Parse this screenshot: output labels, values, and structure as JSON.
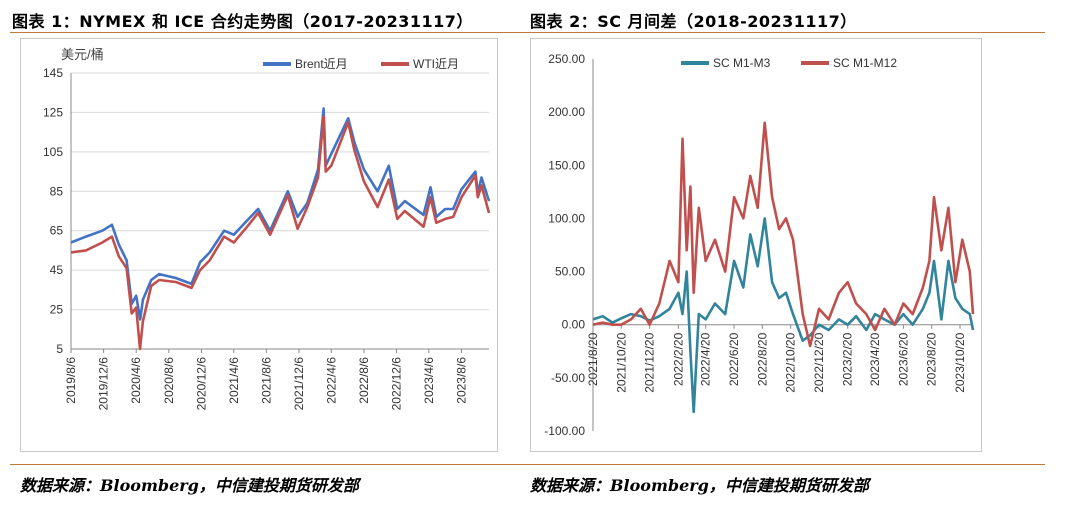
{
  "left": {
    "caption": "图表 1：NYMEX 和 ICE 合约走势图（2017-20231117）",
    "source": "数据来源：Bloomberg，中信建投期货研发部",
    "chart_data": {
      "type": "line",
      "ylabel": "美元/桶",
      "ylim": [
        5,
        145
      ],
      "yticks": [
        5,
        25,
        45,
        65,
        85,
        105,
        125,
        145
      ],
      "xlim": [
        "2019-08-06",
        "2023-11-17"
      ],
      "xticks": [
        "2019/8/6",
        "2019/12/6",
        "2020/4/6",
        "2020/8/6",
        "2020/12/6",
        "2021/4/6",
        "2021/8/6",
        "2021/12/6",
        "2022/4/6",
        "2022/8/6",
        "2022/12/6",
        "2023/4/6",
        "2023/8/6"
      ],
      "grid": true,
      "legend": "top-right",
      "series": [
        {
          "name": "Brent近月",
          "color": "#4472c4",
          "x": [
            "2019-08-06",
            "2019-10-01",
            "2019-12-01",
            "2020-01-06",
            "2020-02-01",
            "2020-03-01",
            "2020-03-20",
            "2020-04-06",
            "2020-04-21",
            "2020-05-01",
            "2020-06-01",
            "2020-07-01",
            "2020-09-01",
            "2020-10-30",
            "2020-12-01",
            "2021-01-06",
            "2021-03-01",
            "2021-04-06",
            "2021-06-01",
            "2021-07-06",
            "2021-08-20",
            "2021-10-25",
            "2021-12-01",
            "2022-01-06",
            "2022-02-15",
            "2022-03-08",
            "2022-03-16",
            "2022-04-06",
            "2022-06-08",
            "2022-07-01",
            "2022-08-06",
            "2022-09-26",
            "2022-11-07",
            "2022-12-09",
            "2023-01-06",
            "2023-03-17",
            "2023-04-12",
            "2023-05-04",
            "2023-06-06",
            "2023-07-06",
            "2023-08-06",
            "2023-09-27",
            "2023-10-06",
            "2023-10-20",
            "2023-11-17"
          ],
          "values": [
            59,
            62,
            65,
            68,
            58,
            50,
            28,
            32,
            20,
            30,
            40,
            43,
            41,
            38,
            49,
            54,
            65,
            63,
            71,
            76,
            65,
            85,
            72,
            79,
            96,
            127,
            98,
            104,
            122,
            110,
            96,
            85,
            98,
            76,
            80,
            73,
            87,
            72,
            76,
            76,
            86,
            95,
            84,
            92,
            80
          ]
        },
        {
          "name": "WTI近月",
          "color": "#c0504d",
          "x": [
            "2019-08-06",
            "2019-10-01",
            "2019-12-01",
            "2020-01-06",
            "2020-02-01",
            "2020-03-01",
            "2020-03-20",
            "2020-04-06",
            "2020-04-20",
            "2020-05-01",
            "2020-06-01",
            "2020-07-01",
            "2020-09-01",
            "2020-10-30",
            "2020-12-01",
            "2021-01-06",
            "2021-03-01",
            "2021-04-06",
            "2021-06-01",
            "2021-07-06",
            "2021-08-20",
            "2021-10-25",
            "2021-12-01",
            "2022-01-06",
            "2022-02-15",
            "2022-03-08",
            "2022-03-16",
            "2022-04-06",
            "2022-06-08",
            "2022-07-01",
            "2022-08-06",
            "2022-09-26",
            "2022-11-07",
            "2022-12-09",
            "2023-01-06",
            "2023-03-17",
            "2023-04-12",
            "2023-05-04",
            "2023-06-06",
            "2023-07-06",
            "2023-08-06",
            "2023-09-27",
            "2023-10-06",
            "2023-10-20",
            "2023-11-17"
          ],
          "values": [
            54,
            55,
            59,
            62,
            52,
            46,
            23,
            26,
            5,
            19,
            37,
            40,
            39,
            36,
            45,
            50,
            62,
            59,
            68,
            74,
            63,
            83,
            66,
            77,
            92,
            123,
            95,
            98,
            120,
            106,
            90,
            77,
            91,
            71,
            75,
            67,
            82,
            69,
            71,
            72,
            82,
            93,
            82,
            88,
            74
          ]
        }
      ]
    }
  },
  "right": {
    "caption": "图表 2：SC 月间差（2018-20231117）",
    "source": "数据来源：Bloomberg，中信建投期货研发部",
    "chart_data": {
      "type": "line",
      "ylim": [
        -100,
        250
      ],
      "yticks": [
        "-100.00",
        "-50.00",
        "0.00",
        "50.00",
        "100.00",
        "150.00",
        "200.00",
        "250.00"
      ],
      "xlim": [
        "2021-08-20",
        "2023-11-17"
      ],
      "xticks": [
        "2021/8/20",
        "2021/10/20",
        "2021/12/20",
        "2022/2/20",
        "2022/4/20",
        "2022/6/20",
        "2022/8/20",
        "2022/10/20",
        "2022/12/20",
        "2023/2/20",
        "2023/4/20",
        "2023/6/20",
        "2023/8/20",
        "2023/10/20"
      ],
      "grid": false,
      "legend": "top",
      "series": [
        {
          "name": "SC M1-M3",
          "color": "#31849b",
          "x": [
            "2021-08-20",
            "2021-09-10",
            "2021-10-01",
            "2021-10-20",
            "2021-11-10",
            "2021-12-01",
            "2021-12-20",
            "2022-01-10",
            "2022-02-01",
            "2022-02-20",
            "2022-03-01",
            "2022-03-10",
            "2022-03-18",
            "2022-03-25",
            "2022-04-05",
            "2022-04-20",
            "2022-05-10",
            "2022-06-01",
            "2022-06-20",
            "2022-07-10",
            "2022-07-25",
            "2022-08-10",
            "2022-08-25",
            "2022-09-10",
            "2022-09-25",
            "2022-10-10",
            "2022-10-25",
            "2022-11-15",
            "2022-12-01",
            "2022-12-20",
            "2023-01-10",
            "2023-02-01",
            "2023-02-20",
            "2023-03-10",
            "2023-04-01",
            "2023-04-20",
            "2023-05-10",
            "2023-06-01",
            "2023-06-20",
            "2023-07-10",
            "2023-08-01",
            "2023-08-15",
            "2023-08-25",
            "2023-09-10",
            "2023-09-25",
            "2023-10-10",
            "2023-10-25",
            "2023-11-10",
            "2023-11-17"
          ],
          "values": [
            5,
            8,
            2,
            6,
            10,
            8,
            4,
            8,
            15,
            30,
            10,
            50,
            -25,
            -82,
            10,
            5,
            20,
            10,
            60,
            35,
            85,
            55,
            100,
            40,
            25,
            30,
            10,
            -15,
            -10,
            0,
            -5,
            5,
            0,
            8,
            -5,
            10,
            5,
            0,
            10,
            0,
            15,
            30,
            60,
            5,
            60,
            25,
            15,
            10,
            -5
          ]
        },
        {
          "name": "SC M1-M12",
          "color": "#c0504d",
          "x": [
            "2021-08-20",
            "2021-09-10",
            "2021-10-01",
            "2021-10-20",
            "2021-11-10",
            "2021-12-01",
            "2021-12-20",
            "2022-01-10",
            "2022-02-01",
            "2022-02-20",
            "2022-03-01",
            "2022-03-10",
            "2022-03-18",
            "2022-03-25",
            "2022-04-05",
            "2022-04-20",
            "2022-05-10",
            "2022-06-01",
            "2022-06-20",
            "2022-07-10",
            "2022-07-25",
            "2022-08-10",
            "2022-08-25",
            "2022-09-10",
            "2022-09-25",
            "2022-10-10",
            "2022-10-25",
            "2022-11-15",
            "2022-12-01",
            "2022-12-20",
            "2023-01-10",
            "2023-02-01",
            "2023-02-20",
            "2023-03-10",
            "2023-04-01",
            "2023-04-20",
            "2023-05-10",
            "2023-06-01",
            "2023-06-20",
            "2023-07-10",
            "2023-08-01",
            "2023-08-15",
            "2023-08-25",
            "2023-09-10",
            "2023-09-25",
            "2023-10-10",
            "2023-10-25",
            "2023-11-10",
            "2023-11-17"
          ],
          "values": [
            0,
            2,
            0,
            0,
            5,
            15,
            0,
            20,
            60,
            40,
            175,
            70,
            130,
            30,
            110,
            60,
            80,
            50,
            120,
            100,
            140,
            110,
            190,
            120,
            90,
            100,
            80,
            10,
            -20,
            15,
            5,
            30,
            40,
            20,
            10,
            -5,
            15,
            0,
            20,
            10,
            35,
            60,
            120,
            70,
            110,
            40,
            80,
            50,
            10
          ]
        }
      ]
    }
  }
}
